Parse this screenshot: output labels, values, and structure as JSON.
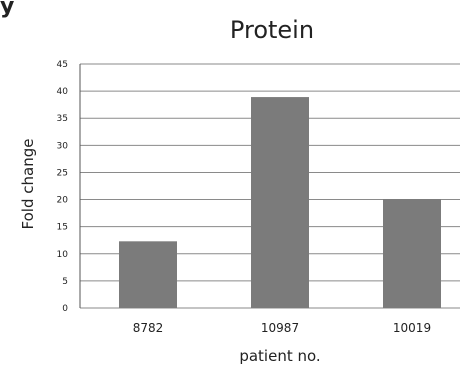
{
  "panel_letter": "y",
  "chart_data": {
    "type": "bar",
    "title": "Protein",
    "xlabel": "patient no.",
    "ylabel": "Fold change",
    "categories": [
      "8782",
      "10987",
      "10019"
    ],
    "values": [
      12.3,
      38.9,
      20.1
    ],
    "ylim": [
      0,
      45
    ],
    "yticks": [
      0,
      5,
      10,
      15,
      20,
      25,
      30,
      35,
      40,
      45
    ],
    "grid": true,
    "legend": "none",
    "colors": {
      "bar": "#7b7b7b",
      "grid": "#8a8a8a",
      "axis": "#555555",
      "text": "#222222"
    }
  }
}
